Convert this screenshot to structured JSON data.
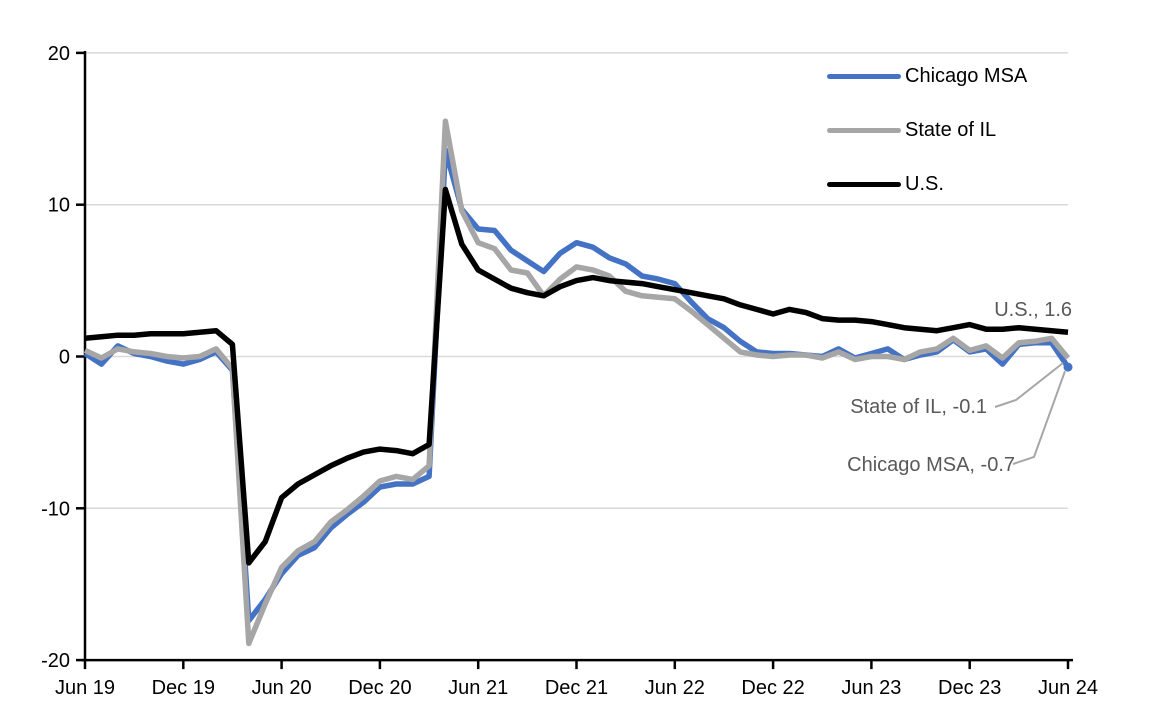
{
  "chart_data": {
    "type": "line",
    "title": "",
    "xlabel": "",
    "ylabel": "",
    "ylim": [
      -20,
      20
    ],
    "y_ticks": [
      "20",
      "10",
      "0",
      "-10",
      "-20"
    ],
    "y_tick_values": [
      20,
      10,
      0,
      -10,
      -20
    ],
    "x_tick_labels": [
      "Jun 19",
      "Dec 19",
      "Jun 20",
      "Dec 20",
      "Jun 21",
      "Dec 21",
      "Jun 22",
      "Dec 22",
      "Jun 23",
      "Dec 23",
      "Jun 24"
    ],
    "x_start": "Jun 2019",
    "x_end": "Jun 2024",
    "points_per_series": 61,
    "grid": "horizontal",
    "gridline_color": "#D9D9D9",
    "axis_color": "#000000",
    "annotation_text_color": "#595959",
    "leader_line_color": "#A6A6A6",
    "legend_position": "top-right",
    "series": [
      {
        "name": "Chicago MSA",
        "color": "#4472C4",
        "end_value": -0.7,
        "end_marker": "dot",
        "values": [
          0.2,
          -0.5,
          0.7,
          0.2,
          0.0,
          -0.3,
          -0.5,
          -0.2,
          0.3,
          -0.9,
          -17.4,
          -16.0,
          -14.3,
          -13.1,
          -12.6,
          -11.3,
          -10.4,
          -9.6,
          -8.6,
          -8.4,
          -8.4,
          -7.9,
          13.6,
          9.7,
          8.4,
          8.3,
          7.0,
          6.3,
          5.6,
          6.8,
          7.5,
          7.2,
          6.5,
          6.1,
          5.3,
          5.1,
          4.8,
          3.6,
          2.5,
          1.9,
          1.0,
          0.3,
          0.2,
          0.2,
          0.1,
          0.0,
          0.5,
          -0.1,
          0.2,
          0.5,
          -0.2,
          0.1,
          0.3,
          1.1,
          0.3,
          0.5,
          -0.5,
          0.8,
          0.9,
          0.9,
          -0.7
        ]
      },
      {
        "name": "State of IL",
        "color": "#A6A6A6",
        "end_value": -0.1,
        "end_marker": "none",
        "values": [
          0.4,
          -0.1,
          0.5,
          0.3,
          0.2,
          0.0,
          -0.1,
          0.0,
          0.5,
          -0.8,
          -18.9,
          -16.3,
          -13.9,
          -12.8,
          -12.2,
          -10.9,
          -10.1,
          -9.2,
          -8.2,
          -7.9,
          -8.1,
          -7.2,
          15.5,
          9.6,
          7.5,
          7.1,
          5.7,
          5.5,
          4.0,
          5.1,
          5.9,
          5.7,
          5.3,
          4.3,
          4.0,
          3.9,
          3.8,
          3.0,
          2.1,
          1.2,
          0.3,
          0.1,
          0.0,
          0.1,
          0.1,
          -0.1,
          0.3,
          -0.2,
          0.0,
          0.0,
          -0.2,
          0.3,
          0.5,
          1.2,
          0.4,
          0.7,
          -0.1,
          0.9,
          1.0,
          1.2,
          -0.1
        ]
      },
      {
        "name": "U.S.",
        "color": "#000000",
        "end_value": 1.6,
        "end_marker": "none",
        "values": [
          1.2,
          1.3,
          1.4,
          1.4,
          1.5,
          1.5,
          1.5,
          1.6,
          1.7,
          0.8,
          -13.6,
          -12.2,
          -9.3,
          -8.4,
          -7.8,
          -7.2,
          -6.7,
          -6.3,
          -6.1,
          -6.2,
          -6.4,
          -5.8,
          11.0,
          7.4,
          5.7,
          5.1,
          4.5,
          4.2,
          4.0,
          4.6,
          5.0,
          5.2,
          5.0,
          4.9,
          4.8,
          4.6,
          4.4,
          4.2,
          4.0,
          3.8,
          3.4,
          3.1,
          2.8,
          3.1,
          2.9,
          2.5,
          2.4,
          2.4,
          2.3,
          2.1,
          1.9,
          1.8,
          1.7,
          1.9,
          2.1,
          1.8,
          1.8,
          1.9,
          1.8,
          1.7,
          1.6
        ]
      }
    ]
  },
  "legend": {
    "items": [
      {
        "label": "Chicago MSA"
      },
      {
        "label": "State of IL"
      },
      {
        "label": "U.S."
      }
    ]
  },
  "annotations": {
    "us": "U.S., 1.6",
    "il": "State of IL, -0.1",
    "chicago": "Chicago MSA, -0.7"
  }
}
